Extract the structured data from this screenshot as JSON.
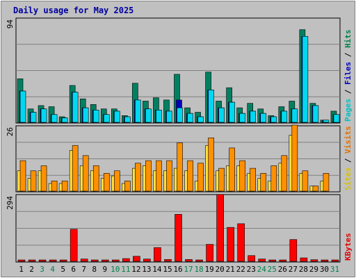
{
  "chart_data": {
    "type": "bar",
    "title": "Daily usage for May 2025",
    "x": [
      "1",
      "2",
      "3",
      "4",
      "5",
      "6",
      "7",
      "8",
      "9",
      "10",
      "11",
      "12",
      "13",
      "14",
      "15",
      "16",
      "17",
      "18",
      "19",
      "20",
      "21",
      "22",
      "23",
      "24",
      "25",
      "26",
      "27",
      "28",
      "29",
      "30",
      "31"
    ],
    "weekend_days": [
      "3",
      "4",
      "10",
      "11",
      "17",
      "18",
      "24",
      "25",
      "31"
    ],
    "panels": [
      {
        "id": "hits_files_pages",
        "ymax": 94,
        "ymax_label": "94",
        "right_label": [
          {
            "text": "Pages",
            "color": "#00c0c0"
          },
          {
            "text": " / ",
            "color": "#000000"
          },
          {
            "text": "Files",
            "color": "#0000c0"
          },
          {
            "text": " / ",
            "color": "#000000"
          },
          {
            "text": "Hits",
            "color": "#00804a"
          }
        ],
        "series": [
          {
            "name": "Hits",
            "color": "#008060",
            "values": [
              39,
              12,
              15,
              14,
              5,
              33,
              21,
              16,
              12,
              12,
              6,
              35,
              19,
              22,
              20,
              43,
              13,
              9,
              45,
              19,
              31,
              13,
              17,
              12,
              6,
              14,
              19,
              83,
              17,
              2,
              10
            ]
          },
          {
            "name": "Files",
            "color": "#0000c0",
            "values": [
              28,
              9,
              12,
              7,
              4,
              27,
              13,
              11,
              7,
              10,
              5,
              20,
              12,
              11,
              10,
              20,
              8,
              5,
              29,
              13,
              18,
              8,
              10,
              8,
              5,
              10,
              12,
              77,
              15,
              2,
              7
            ]
          },
          {
            "name": "Pages",
            "color": "#00d8f0",
            "values": [
              28,
              9,
              12,
              7,
              4,
              27,
              13,
              11,
              7,
              10,
              5,
              20,
              12,
              11,
              10,
              13,
              8,
              5,
              29,
              13,
              18,
              8,
              10,
              8,
              5,
              10,
              12,
              77,
              15,
              2,
              7
            ]
          }
        ]
      },
      {
        "id": "visits_sites",
        "ymax": 26,
        "ymax_label": "26",
        "right_label": [
          {
            "text": "Sites",
            "color": "#d8c000"
          },
          {
            "text": " / ",
            "color": "#000000"
          },
          {
            "text": "Visits",
            "color": "#e07000"
          }
        ],
        "series": [
          {
            "name": "Visits",
            "color": "#ff9000",
            "values": [
              12,
              8,
              10,
              4,
              4,
              18,
              14,
              10,
              7,
              8,
              4,
              11,
              12,
              12,
              12,
              19,
              12,
              11,
              21,
              9,
              17,
              12,
              9,
              7,
              10,
              14,
              26,
              8,
              2,
              7,
              0
            ]
          },
          {
            "name": "Sites",
            "color": "#ffe040",
            "values": [
              8,
              5,
              8,
              3,
              3,
              16,
              10,
              8,
              5,
              6,
              3,
              9,
              10,
              8,
              8,
              9,
              8,
              4,
              18,
              8,
              10,
              10,
              7,
              5,
              4,
              11,
              22,
              7,
              2,
              4,
              0
            ]
          }
        ]
      },
      {
        "id": "kbytes",
        "ymax": 294,
        "ymax_label": "294",
        "right_label": [
          {
            "text": "KBytes",
            "color": "#e00000"
          }
        ],
        "series": [
          {
            "name": "KBytes",
            "color": "#ff0000",
            "values": [
              5,
              4,
              4,
              4,
              4,
              140,
              10,
              4,
              4,
              4,
              12,
              22,
              10,
              60,
              8,
              205,
              8,
              4,
              74,
              292,
              148,
              164,
              25,
              10,
              4,
              4,
              95,
              15,
              7,
              4,
              4
            ]
          }
        ]
      }
    ],
    "grid": true
  }
}
